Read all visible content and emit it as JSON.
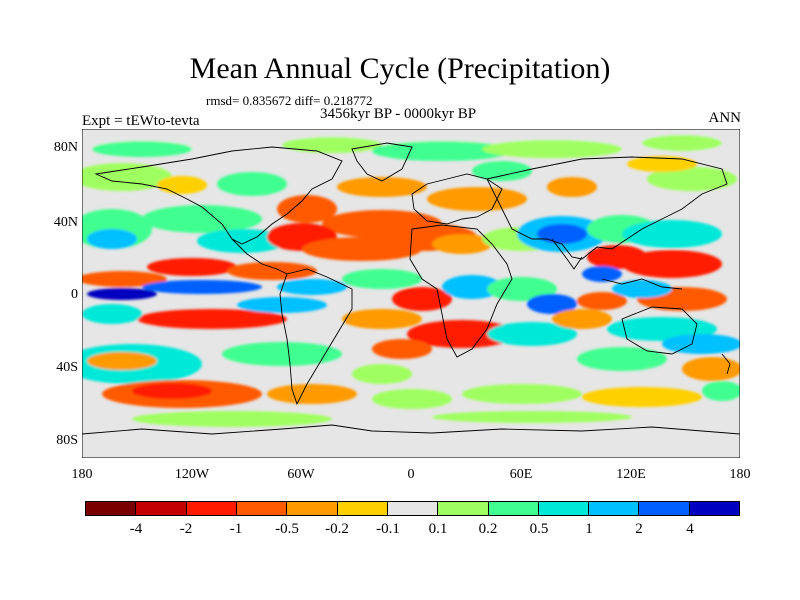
{
  "title": "Mean Annual Cycle (Precipitation)",
  "stats": "rmsd= 0.835672 diff= 0.218772",
  "experiment": "Expt = tEWto-tevta",
  "period": "3456kyr BP - 0000kyr BP",
  "season": "ANN",
  "lat_ticks": [
    "80N",
    "40N",
    "0",
    "40S",
    "80S"
  ],
  "lon_ticks": [
    "180",
    "120W",
    "60W",
    "0",
    "60E",
    "120E",
    "180"
  ],
  "colorbar": {
    "colors": [
      "#7a0000",
      "#c40000",
      "#ff1a00",
      "#ff5a00",
      "#ff9a00",
      "#ffd000",
      "#e6e6e6",
      "#a0ff60",
      "#40ff90",
      "#00e8d8",
      "#00c0ff",
      "#0060ff",
      "#0000c0"
    ],
    "labels": [
      "-4",
      "-2",
      "-1",
      "-0.5",
      "-0.2",
      "-0.1",
      "0.1",
      "0.2",
      "0.5",
      "1",
      "2",
      "4"
    ]
  },
  "palette": {
    "neutral": "#e6e6e6",
    "ocean_green": "#80ff70",
    "teal": "#40f0c0"
  }
}
